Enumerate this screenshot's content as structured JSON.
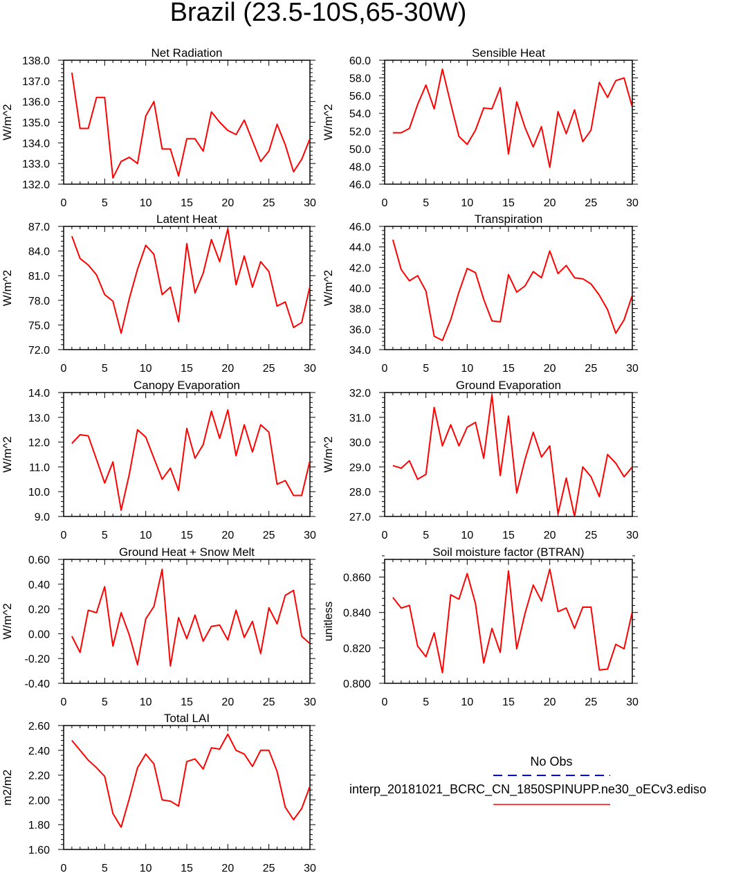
{
  "title": "Brazil (23.5-10S,65-30W)",
  "colors": {
    "line": "#ff0000",
    "obs": "#0000ff",
    "axis": "#000000"
  },
  "legend": {
    "obs_label": "No Obs",
    "model_label": "interp_20181021_BCRC_CN_1850SPINUPP.ne30_oECv3.ediso"
  },
  "chart_data": [
    {
      "type": "line",
      "title": "Net Radiation",
      "ylabel": "W/m^2",
      "xlim": [
        0,
        30
      ],
      "ylim": [
        132,
        138
      ],
      "xticks": [
        0,
        5,
        10,
        15,
        20,
        25,
        30
      ],
      "yticks": [
        132,
        133,
        134,
        135,
        136,
        137,
        138
      ],
      "ytick_labels": [
        "132.0",
        "133.0",
        "134.0",
        "135.0",
        "136.0",
        "137.0",
        "138.0"
      ],
      "series": [
        {
          "name": "model",
          "x": [
            1,
            2,
            3,
            4,
            5,
            6,
            7,
            8,
            9,
            10,
            11,
            12,
            13,
            14,
            15,
            16,
            17,
            18,
            19,
            20,
            21,
            22,
            23,
            24,
            25,
            26,
            27,
            28,
            29,
            30
          ],
          "values": [
            137.4,
            134.7,
            134.7,
            136.2,
            136.2,
            132.3,
            133.1,
            133.3,
            133.0,
            135.3,
            136.0,
            133.7,
            133.7,
            132.4,
            134.2,
            134.2,
            133.6,
            135.5,
            135.0,
            134.6,
            134.4,
            135.1,
            134.1,
            133.1,
            133.6,
            134.9,
            133.9,
            132.6,
            133.2,
            134.2
          ]
        }
      ]
    },
    {
      "type": "line",
      "title": "Sensible Heat",
      "ylabel": "W/m^2",
      "xlim": [
        0,
        30
      ],
      "ylim": [
        46,
        60
      ],
      "xticks": [
        0,
        5,
        10,
        15,
        20,
        25,
        30
      ],
      "yticks": [
        46,
        48,
        50,
        52,
        54,
        56,
        58,
        60
      ],
      "ytick_labels": [
        "46.0",
        "48.0",
        "50.0",
        "52.0",
        "54.0",
        "56.0",
        "58.0",
        "60.0"
      ],
      "series": [
        {
          "name": "model",
          "x": [
            1,
            2,
            3,
            4,
            5,
            6,
            7,
            8,
            9,
            10,
            11,
            12,
            13,
            14,
            15,
            16,
            17,
            18,
            19,
            20,
            21,
            22,
            23,
            24,
            25,
            26,
            27,
            28,
            29,
            30
          ],
          "values": [
            51.8,
            51.8,
            52.3,
            55.0,
            57.2,
            54.5,
            59.0,
            55.1,
            51.4,
            50.5,
            52.1,
            54.6,
            54.5,
            56.9,
            49.4,
            55.3,
            52.4,
            50.2,
            52.5,
            47.9,
            54.2,
            51.7,
            54.4,
            50.8,
            52.1,
            57.5,
            55.8,
            57.7,
            58.0,
            54.7
          ]
        }
      ]
    },
    {
      "type": "line",
      "title": "Latent Heat",
      "ylabel": "W/m^2",
      "xlim": [
        0,
        30
      ],
      "ylim": [
        72,
        87
      ],
      "xticks": [
        0,
        5,
        10,
        15,
        20,
        25,
        30
      ],
      "yticks": [
        72,
        75,
        78,
        81,
        84,
        87
      ],
      "ytick_labels": [
        "72.0",
        "75.0",
        "78.0",
        "81.0",
        "84.0",
        "87.0"
      ],
      "series": [
        {
          "name": "model",
          "x": [
            1,
            2,
            3,
            4,
            5,
            6,
            7,
            8,
            9,
            10,
            11,
            12,
            13,
            14,
            15,
            16,
            17,
            18,
            19,
            20,
            21,
            22,
            23,
            24,
            25,
            26,
            27,
            28,
            29,
            30
          ],
          "values": [
            85.8,
            83.1,
            82.3,
            81.1,
            78.7,
            77.9,
            74.0,
            78.2,
            81.8,
            84.7,
            83.6,
            78.7,
            79.6,
            75.4,
            84.9,
            78.9,
            81.3,
            85.4,
            82.7,
            86.7,
            79.9,
            83.4,
            79.6,
            82.7,
            81.5,
            77.3,
            77.8,
            74.7,
            75.3,
            79.7
          ]
        }
      ]
    },
    {
      "type": "line",
      "title": "Transpiration",
      "ylabel": "W/m^2",
      "xlim": [
        0,
        30
      ],
      "ylim": [
        34,
        46
      ],
      "xticks": [
        0,
        5,
        10,
        15,
        20,
        25,
        30
      ],
      "yticks": [
        34,
        36,
        38,
        40,
        42,
        44,
        46
      ],
      "ytick_labels": [
        "34.0",
        "36.0",
        "38.0",
        "40.0",
        "42.0",
        "44.0",
        "46.0"
      ],
      "series": [
        {
          "name": "model",
          "x": [
            1,
            2,
            3,
            4,
            5,
            6,
            7,
            8,
            9,
            10,
            11,
            12,
            13,
            14,
            15,
            16,
            17,
            18,
            19,
            20,
            21,
            22,
            23,
            24,
            25,
            26,
            27,
            28,
            29,
            30
          ],
          "values": [
            44.7,
            41.8,
            40.7,
            41.2,
            39.7,
            35.3,
            34.9,
            36.9,
            39.6,
            41.9,
            41.5,
            38.9,
            36.8,
            36.7,
            41.3,
            39.6,
            40.2,
            41.6,
            41.0,
            43.6,
            41.4,
            42.2,
            41.0,
            40.9,
            40.4,
            39.3,
            37.9,
            35.6,
            36.9,
            39.3
          ]
        }
      ]
    },
    {
      "type": "line",
      "title": "Canopy Evaporation",
      "ylabel": "W/m^2",
      "xlim": [
        0,
        30
      ],
      "ylim": [
        9,
        14
      ],
      "xticks": [
        0,
        5,
        10,
        15,
        20,
        25,
        30
      ],
      "yticks": [
        9,
        10,
        11,
        12,
        13,
        14
      ],
      "ytick_labels": [
        "9.0",
        "10.0",
        "11.0",
        "12.0",
        "13.0",
        "14.0"
      ],
      "series": [
        {
          "name": "model",
          "x": [
            1,
            2,
            3,
            4,
            5,
            6,
            7,
            8,
            9,
            10,
            11,
            12,
            13,
            14,
            15,
            16,
            17,
            18,
            19,
            20,
            21,
            22,
            23,
            24,
            25,
            26,
            27,
            28,
            29,
            30
          ],
          "values": [
            11.95,
            12.3,
            12.25,
            11.3,
            10.35,
            11.2,
            9.25,
            10.7,
            12.5,
            12.2,
            11.35,
            10.5,
            10.95,
            10.05,
            12.55,
            11.35,
            11.9,
            13.25,
            12.15,
            13.3,
            11.45,
            12.7,
            11.6,
            12.7,
            12.4,
            10.3,
            10.45,
            9.85,
            9.85,
            11.25
          ]
        }
      ]
    },
    {
      "type": "line",
      "title": "Ground Evaporation",
      "ylabel": "W/m^2",
      "xlim": [
        0,
        30
      ],
      "ylim": [
        27,
        32
      ],
      "xticks": [
        0,
        5,
        10,
        15,
        20,
        25,
        30
      ],
      "yticks": [
        27,
        28,
        29,
        30,
        31,
        32
      ],
      "ytick_labels": [
        "27.0",
        "28.0",
        "29.0",
        "30.0",
        "31.0",
        "32.0"
      ],
      "series": [
        {
          "name": "model",
          "x": [
            1,
            2,
            3,
            4,
            5,
            6,
            7,
            8,
            9,
            10,
            11,
            12,
            13,
            14,
            15,
            16,
            17,
            18,
            19,
            20,
            21,
            22,
            23,
            24,
            25,
            26,
            27,
            28,
            29,
            30
          ],
          "values": [
            29.05,
            28.95,
            29.25,
            28.5,
            28.7,
            31.4,
            29.85,
            30.7,
            29.85,
            30.6,
            30.8,
            29.35,
            31.9,
            28.65,
            31.05,
            27.95,
            29.3,
            30.4,
            29.4,
            29.85,
            27.1,
            28.55,
            27.0,
            29.0,
            28.6,
            27.8,
            29.5,
            29.15,
            28.6,
            29.0
          ]
        }
      ]
    },
    {
      "type": "line",
      "title": "Ground Heat + Snow Melt",
      "ylabel": "W/m^2",
      "xlim": [
        0,
        30
      ],
      "ylim": [
        -0.4,
        0.6
      ],
      "xticks": [
        0,
        5,
        10,
        15,
        20,
        25,
        30
      ],
      "yticks": [
        -0.4,
        -0.2,
        0.0,
        0.2,
        0.4,
        0.6
      ],
      "ytick_labels": [
        "-0.40",
        "-0.20",
        "0.00",
        "0.20",
        "0.40",
        "0.60"
      ],
      "series": [
        {
          "name": "model",
          "x": [
            1,
            2,
            3,
            4,
            5,
            6,
            7,
            8,
            9,
            10,
            11,
            12,
            13,
            14,
            15,
            16,
            17,
            18,
            19,
            20,
            21,
            22,
            23,
            24,
            25,
            26,
            27,
            28,
            29,
            30
          ],
          "values": [
            -0.02,
            -0.15,
            0.19,
            0.17,
            0.38,
            -0.1,
            0.17,
            -0.01,
            -0.25,
            0.12,
            0.22,
            0.52,
            -0.26,
            0.13,
            -0.04,
            0.15,
            -0.06,
            0.06,
            0.07,
            -0.05,
            0.19,
            -0.03,
            0.1,
            -0.16,
            0.21,
            0.08,
            0.31,
            0.35,
            -0.02,
            -0.08
          ]
        }
      ]
    },
    {
      "type": "line",
      "title": "Soil moisture factor (BTRAN)",
      "ylabel": "unitless",
      "xlim": [
        0,
        30
      ],
      "ylim": [
        0.8,
        0.87
      ],
      "xticks": [
        0,
        5,
        10,
        15,
        20,
        25,
        30
      ],
      "yticks": [
        0.8,
        0.82,
        0.84,
        0.86
      ],
      "ytick_labels": [
        "0.800",
        "0.820",
        "0.840",
        "0.860"
      ],
      "series": [
        {
          "name": "model",
          "x": [
            1,
            2,
            3,
            4,
            5,
            6,
            7,
            8,
            9,
            10,
            11,
            12,
            13,
            14,
            15,
            16,
            17,
            18,
            19,
            20,
            21,
            22,
            23,
            24,
            25,
            26,
            27,
            28,
            29,
            30
          ],
          "values": [
            0.8485,
            0.8425,
            0.844,
            0.821,
            0.815,
            0.8285,
            0.806,
            0.85,
            0.8475,
            0.862,
            0.845,
            0.8115,
            0.831,
            0.8175,
            0.8635,
            0.8195,
            0.8395,
            0.8555,
            0.8465,
            0.8645,
            0.8405,
            0.8425,
            0.831,
            0.843,
            0.843,
            0.8075,
            0.808,
            0.822,
            0.8195,
            0.8405
          ]
        }
      ]
    },
    {
      "type": "line",
      "title": "Total LAI",
      "ylabel": "m2/m2",
      "xlim": [
        0,
        30
      ],
      "ylim": [
        1.6,
        2.6
      ],
      "xticks": [
        0,
        5,
        10,
        15,
        20,
        25,
        30
      ],
      "yticks": [
        1.6,
        1.8,
        2.0,
        2.2,
        2.4,
        2.6
      ],
      "ytick_labels": [
        "1.60",
        "1.80",
        "2.00",
        "2.20",
        "2.40",
        "2.60"
      ],
      "series": [
        {
          "name": "model",
          "x": [
            1,
            2,
            3,
            4,
            5,
            6,
            7,
            8,
            9,
            10,
            11,
            12,
            13,
            14,
            15,
            16,
            17,
            18,
            19,
            20,
            21,
            22,
            23,
            24,
            25,
            26,
            27,
            28,
            29,
            30
          ],
          "values": [
            2.48,
            2.4,
            2.32,
            2.26,
            2.19,
            1.89,
            1.78,
            2.01,
            2.26,
            2.37,
            2.29,
            2.0,
            1.99,
            1.95,
            2.31,
            2.33,
            2.25,
            2.42,
            2.41,
            2.53,
            2.4,
            2.37,
            2.27,
            2.4,
            2.4,
            2.23,
            1.94,
            1.84,
            1.93,
            2.11
          ]
        }
      ]
    }
  ]
}
